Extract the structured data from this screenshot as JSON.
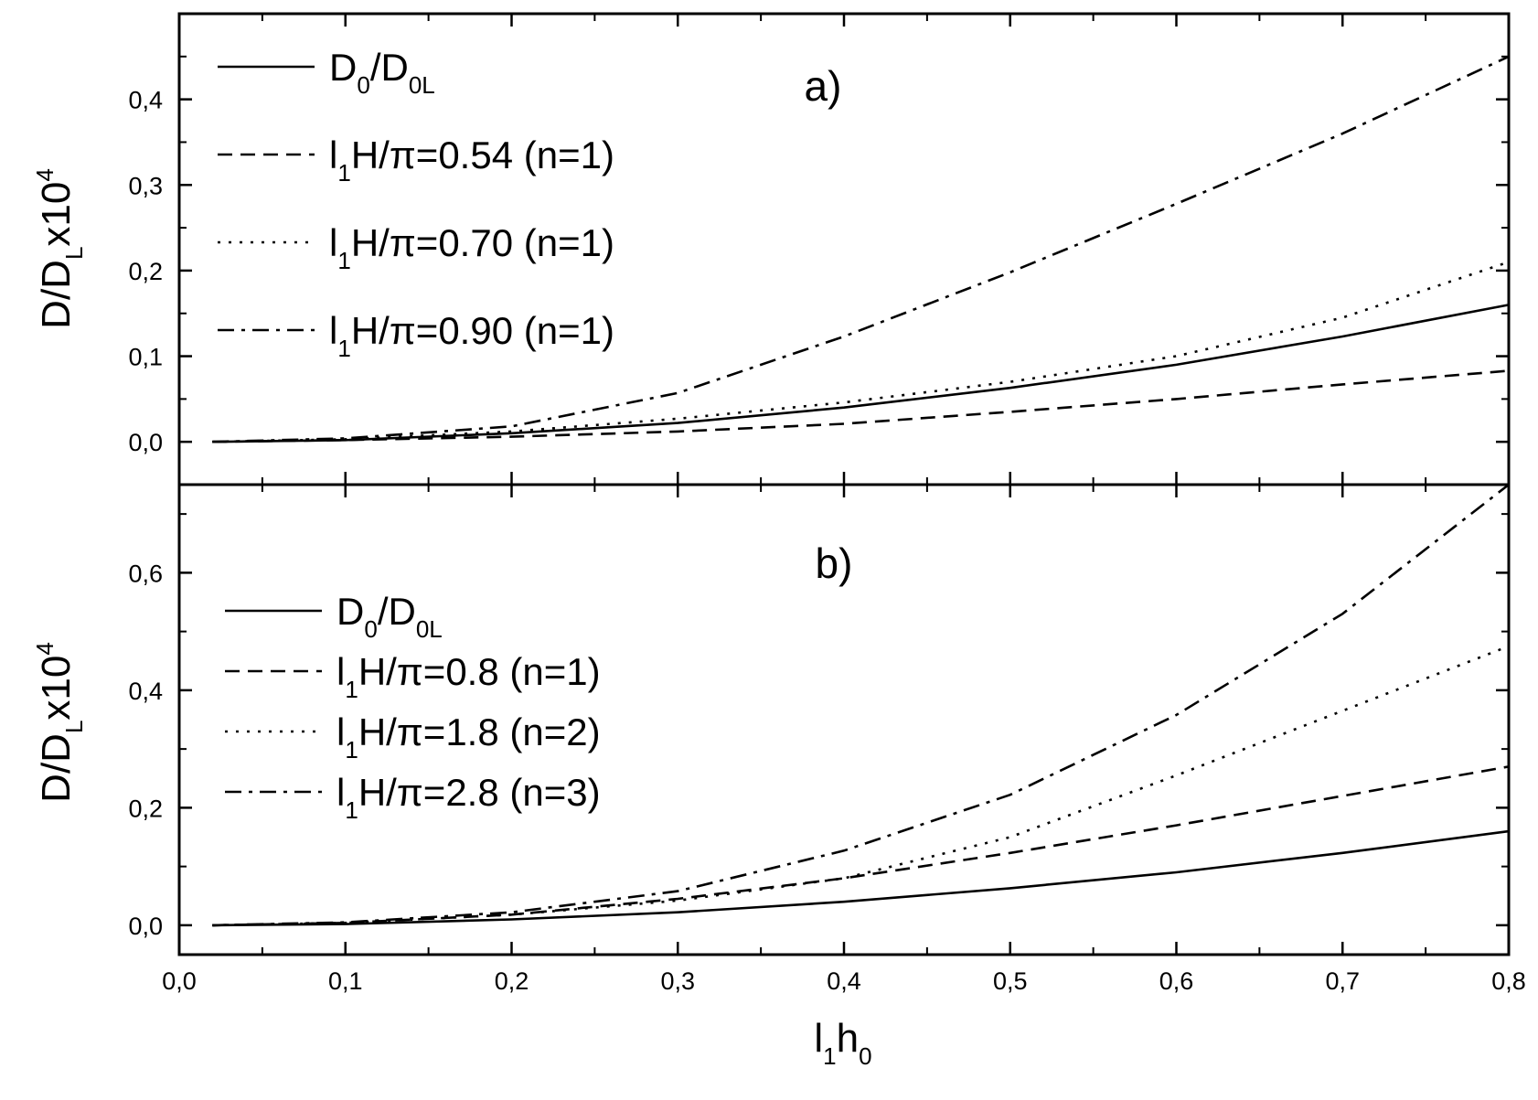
{
  "chart_data": [
    {
      "type": "line",
      "panel_label": "a)",
      "ylabel": {
        "main": "D/D",
        "sub": "L",
        "rest": "x10",
        "sup": "4"
      },
      "xlim": [
        0.0,
        0.8
      ],
      "ylim": [
        -0.05,
        0.5
      ],
      "yticks": [
        "0,0",
        "0,1",
        "0,2",
        "0,3",
        "0,4"
      ],
      "x": [
        0.02,
        0.1,
        0.2,
        0.3,
        0.4,
        0.5,
        0.6,
        0.7,
        0.8
      ],
      "series": [
        {
          "name": {
            "parts": [
              [
                "D",
                ""
              ],
              [
                "0",
                "sub"
              ],
              [
                "/D",
                ""
              ],
              [
                "0L",
                "sub"
              ]
            ]
          },
          "style": "solid",
          "values": [
            0.0,
            0.002,
            0.01,
            0.022,
            0.04,
            0.063,
            0.09,
            0.123,
            0.16
          ]
        },
        {
          "name": {
            "parts": [
              [
                "l",
                ""
              ],
              [
                "1",
                "sub"
              ],
              [
                "H/π=0.54 (n=1)",
                ""
              ]
            ]
          },
          "style": "dashed",
          "values": [
            0.0,
            0.002,
            0.006,
            0.012,
            0.021,
            0.035,
            0.05,
            0.067,
            0.083
          ]
        },
        {
          "name": {
            "parts": [
              [
                "l",
                ""
              ],
              [
                "1",
                "sub"
              ],
              [
                "H/π=0.70 (n=1)",
                ""
              ]
            ]
          },
          "style": "dotted",
          "values": [
            0.0,
            0.003,
            0.012,
            0.027,
            0.046,
            0.07,
            0.1,
            0.145,
            0.21
          ]
        },
        {
          "name": {
            "parts": [
              [
                "l",
                ""
              ],
              [
                "1",
                "sub"
              ],
              [
                "H/π=0.90 (n=1)",
                ""
              ]
            ]
          },
          "style": "dashdot",
          "values": [
            0.0,
            0.004,
            0.018,
            0.057,
            0.123,
            0.198,
            0.278,
            0.36,
            0.45
          ]
        }
      ]
    },
    {
      "type": "line",
      "panel_label": "b)",
      "ylabel": {
        "main": "D/D",
        "sub": "L",
        "rest": "x10",
        "sup": "4"
      },
      "xlabel": {
        "main": "l",
        "sub": "1",
        "rest": "h",
        "sub2": "0"
      },
      "xlim": [
        0.0,
        0.8
      ],
      "ylim": [
        -0.05,
        0.75
      ],
      "yticks": [
        "0,0",
        "0,2",
        "0,4",
        "0,6"
      ],
      "xticks": [
        "0,0",
        "0,1",
        "0,2",
        "0,3",
        "0,4",
        "0,5",
        "0,6",
        "0,7",
        "0,8"
      ],
      "x": [
        0.02,
        0.1,
        0.2,
        0.3,
        0.4,
        0.5,
        0.6,
        0.7,
        0.8
      ],
      "series": [
        {
          "name": {
            "parts": [
              [
                "D",
                ""
              ],
              [
                "0",
                "sub"
              ],
              [
                "/D",
                ""
              ],
              [
                "0L",
                "sub"
              ]
            ]
          },
          "style": "solid",
          "values": [
            0.0,
            0.002,
            0.01,
            0.022,
            0.04,
            0.063,
            0.09,
            0.123,
            0.16
          ]
        },
        {
          "name": {
            "parts": [
              [
                "l",
                ""
              ],
              [
                "1",
                "sub"
              ],
              [
                "H/π=0.8 (n=1)",
                ""
              ]
            ]
          },
          "style": "dashed",
          "values": [
            0.0,
            0.004,
            0.018,
            0.045,
            0.08,
            0.123,
            0.17,
            0.22,
            0.27
          ]
        },
        {
          "name": {
            "parts": [
              [
                "l",
                ""
              ],
              [
                "1",
                "sub"
              ],
              [
                "H/π=1.8 (n=2)",
                ""
              ]
            ]
          },
          "style": "dotted",
          "values": [
            0.0,
            0.004,
            0.018,
            0.042,
            0.08,
            0.15,
            0.255,
            0.365,
            0.475
          ]
        },
        {
          "name": {
            "parts": [
              [
                "l",
                ""
              ],
              [
                "1",
                "sub"
              ],
              [
                "H/π=2.8 (n=3)",
                ""
              ]
            ]
          },
          "style": "dashdot",
          "values": [
            0.0,
            0.005,
            0.022,
            0.058,
            0.127,
            0.222,
            0.358,
            0.53,
            0.75
          ]
        }
      ]
    }
  ]
}
